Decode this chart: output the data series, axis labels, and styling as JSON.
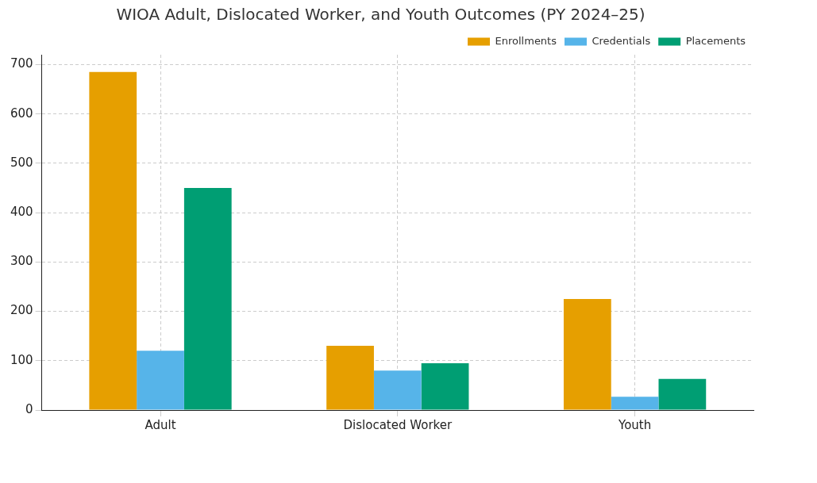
{
  "chart_data": {
    "type": "bar",
    "title": "WIOA Adult, Dislocated Worker, and Youth Outcomes (PY 2024–25)",
    "categories": [
      "Adult",
      "Dislocated Worker",
      "Youth"
    ],
    "series": [
      {
        "name": "Enrollments",
        "color": "#e69f00",
        "values": [
          685,
          130,
          225
        ]
      },
      {
        "name": "Credentials",
        "color": "#56b4e9",
        "values": [
          120,
          80,
          27
        ]
      },
      {
        "name": "Placements",
        "color": "#009e73",
        "values": [
          450,
          95,
          63
        ]
      }
    ],
    "ylim": [
      0,
      720
    ],
    "yticks": [
      0,
      100,
      200,
      300,
      400,
      500,
      600,
      700
    ],
    "grid": true,
    "legend": "top right"
  }
}
